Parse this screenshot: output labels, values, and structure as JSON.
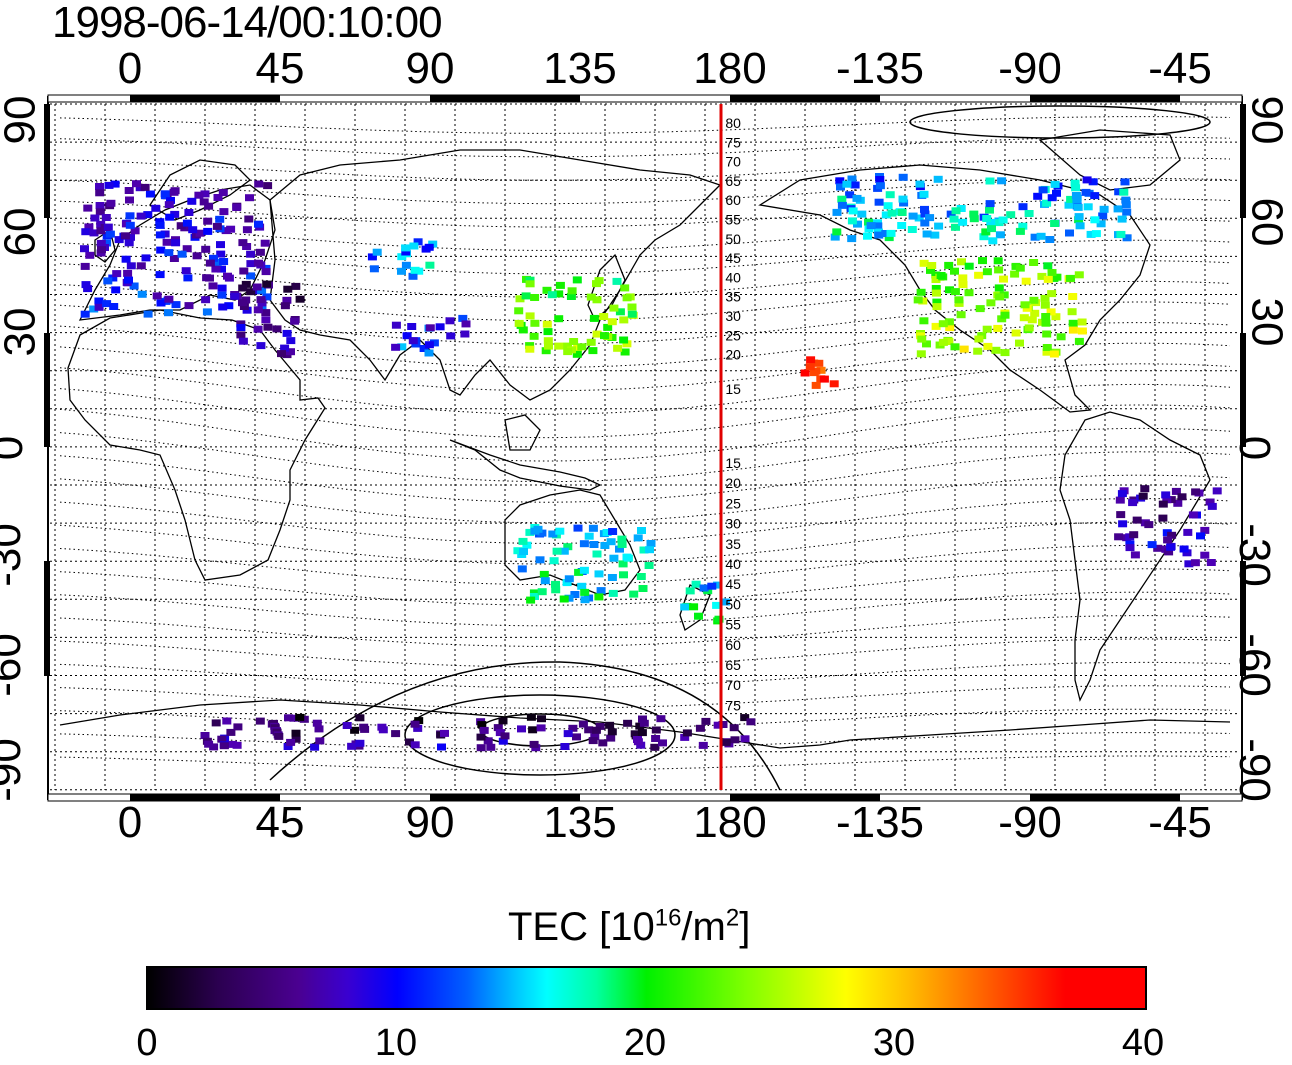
{
  "title": "1998-06-14/00:10:00",
  "lon_ticks": [
    "0",
    "45",
    "90",
    "135",
    "180",
    "-135",
    "-90",
    "-45"
  ],
  "lat_ticks_left": [
    "90",
    "60",
    "30",
    "0",
    "-30",
    "-60",
    "-90"
  ],
  "lat_ticks_right": [
    "90",
    "60",
    "30",
    "0",
    "-30",
    "-60",
    "-90"
  ],
  "meridian_line": {
    "longitude": 178,
    "color": "#e00000",
    "labels_north": [
      "80",
      "75",
      "70",
      "65",
      "60",
      "55",
      "50",
      "45",
      "40",
      "35",
      "30",
      "25",
      "20",
      "15"
    ],
    "labels_south": [
      "15",
      "20",
      "25",
      "30",
      "35",
      "40",
      "45",
      "50",
      "55",
      "60",
      "65",
      "70",
      "75"
    ]
  },
  "colorbar": {
    "title_main": "TEC  [10",
    "title_exp1": "16",
    "title_mid": "/m",
    "title_exp2": "2",
    "title_end": "]",
    "ticks": [
      "0",
      "10",
      "20",
      "30",
      "40"
    ],
    "range": [
      0,
      40
    ]
  },
  "colors": {
    "palette": [
      "#000000",
      "#4a0090",
      "#0000ff",
      "#00ffff",
      "#00f000",
      "#ffff00",
      "#ff0000"
    ]
  },
  "tec_regions": [
    {
      "name": "europe",
      "lon": [
        -15,
        40
      ],
      "lat": [
        35,
        70
      ],
      "tec": 10
    },
    {
      "name": "middle-east",
      "lon": [
        30,
        50
      ],
      "lat": [
        25,
        45
      ],
      "tec": 7
    },
    {
      "name": "russia",
      "lon": [
        70,
        90
      ],
      "lat": [
        45,
        55
      ],
      "tec": 15
    },
    {
      "name": "india",
      "lon": [
        78,
        100
      ],
      "lat": [
        25,
        35
      ],
      "tec": 12
    },
    {
      "name": "east-asia",
      "lon": [
        115,
        150
      ],
      "lat": [
        25,
        45
      ],
      "tec": 24
    },
    {
      "name": "usa",
      "lon": [
        -125,
        -75
      ],
      "lat": [
        25,
        50
      ],
      "tec": 26
    },
    {
      "name": "pacific-hot",
      "lon": [
        -160,
        -150
      ],
      "lat": [
        17,
        25
      ],
      "tec": 39
    },
    {
      "name": "brazil",
      "lon": [
        -65,
        -35
      ],
      "lat": [
        -30,
        -10
      ],
      "tec": 8
    },
    {
      "name": "australia",
      "lon": [
        115,
        155
      ],
      "lat": [
        -40,
        -20
      ],
      "tec": 17
    },
    {
      "name": "new-zealand",
      "lon": [
        165,
        178
      ],
      "lat": [
        -47,
        -35
      ],
      "tec": 18
    },
    {
      "name": "antarctic",
      "lon": [
        20,
        185
      ],
      "lat": [
        -78,
        -70
      ],
      "tec": 6
    },
    {
      "name": "canada-north",
      "lon": [
        -150,
        -60
      ],
      "lat": [
        55,
        72
      ],
      "tec": 16
    }
  ]
}
